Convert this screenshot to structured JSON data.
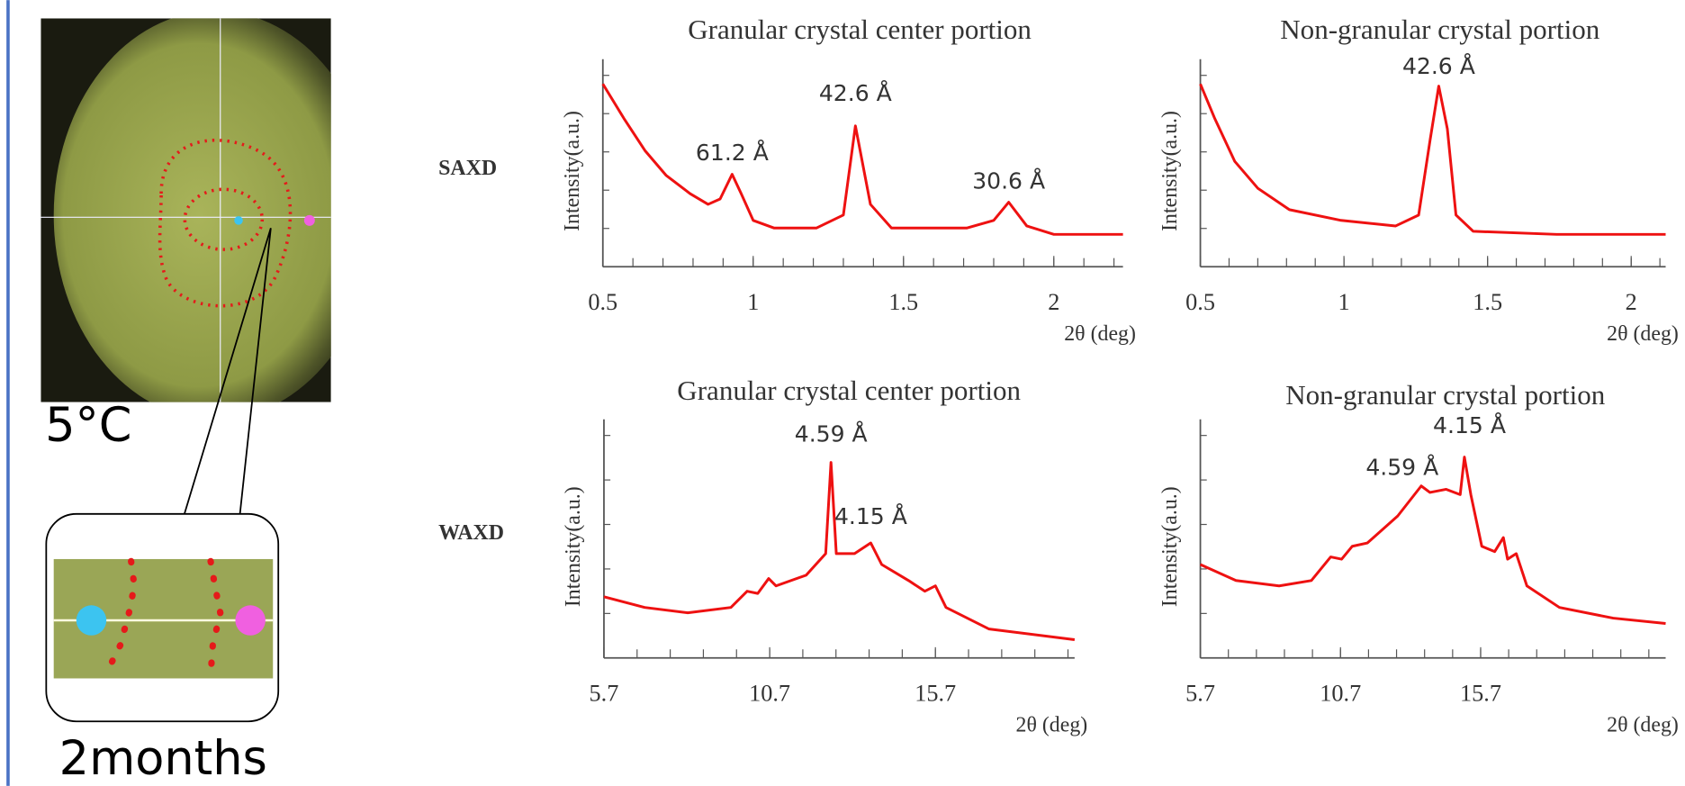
{
  "labels": {
    "temperature": "5°C",
    "duration": "2months",
    "row1": "SAXD",
    "row2": "WAXD"
  },
  "chart_data": [
    {
      "type": "line",
      "title": "Granular crystal center portion",
      "ylabel": "Intensity(a.u.)",
      "xlabel": "2θ (deg)",
      "color": "#ee1111",
      "x": [
        0.5,
        0.57,
        0.64,
        0.71,
        0.79,
        0.85,
        0.89,
        0.93,
        0.96,
        1.0,
        1.07,
        1.21,
        1.3,
        1.34,
        1.39,
        1.46,
        1.71,
        1.8,
        1.85,
        1.91,
        2.0,
        2.23
      ],
      "values": [
        95.5,
        77.5,
        60.7,
        47.8,
        38.2,
        32.6,
        35.4,
        48.3,
        38.2,
        24.2,
        20.2,
        20.2,
        27,
        73.6,
        32.6,
        20.2,
        20.2,
        24.2,
        33.7,
        21.3,
        16.9,
        16.9
      ],
      "xlim": [
        0.5,
        2.23
      ],
      "ylim": [
        0,
        100
      ],
      "xticks": [
        0.5,
        1,
        1.5,
        2
      ],
      "annotations": [
        {
          "text": "61.2 Å",
          "x": 0.93,
          "y": 59
        },
        {
          "text": "42.6 Å",
          "x": 1.34,
          "y": 90
        },
        {
          "text": "30.6 Å",
          "x": 1.85,
          "y": 44
        }
      ]
    },
    {
      "type": "line",
      "title": "Non-granular crystal portion",
      "ylabel": "Intensity(a.u.)",
      "xlabel": "2θ (deg)",
      "color": "#ee1111",
      "x": [
        0.5,
        0.55,
        0.62,
        0.7,
        0.81,
        0.99,
        1.18,
        1.26,
        1.3,
        1.33,
        1.36,
        1.39,
        1.45,
        1.74,
        2.12
      ],
      "values": [
        95.5,
        77.5,
        55,
        41,
        29.8,
        24.2,
        21.3,
        27,
        66.3,
        94.4,
        72,
        27,
        18.5,
        16.9,
        16.9
      ],
      "xlim": [
        0.5,
        2.12
      ],
      "ylim": [
        0,
        100
      ],
      "xticks": [
        0.5,
        1,
        1.5,
        2
      ],
      "annotations": [
        {
          "text": "42.6 Å",
          "x": 1.33,
          "y": 104
        }
      ]
    },
    {
      "type": "line",
      "title": "Granular crystal center portion",
      "ylabel": "Intensity(a.u.)",
      "xlabel": "2θ (deg)",
      "color": "#ee1111",
      "x": [
        5.7,
        6.93,
        8.23,
        9.53,
        10.02,
        10.34,
        10.67,
        10.89,
        11.8,
        12.39,
        12.55,
        12.71,
        13.26,
        13.75,
        14.08,
        14.89,
        15.38,
        15.7,
        16.02,
        17.32,
        19.9
      ],
      "values": [
        27.5,
        22.7,
        20.3,
        22.7,
        30,
        29,
        35.7,
        32.4,
        37.2,
        46.9,
        87.9,
        46.9,
        46.9,
        51.7,
        42,
        34.8,
        30,
        32.4,
        22.7,
        13,
        8.2
      ],
      "xlim": [
        5.7,
        19.9
      ],
      "ylim": [
        0,
        100
      ],
      "xticks": [
        5.7,
        10.7,
        15.7
      ],
      "annotations": [
        {
          "text": "4.59 Å",
          "x": 12.55,
          "y": 100
        },
        {
          "text": "4.15 Å",
          "x": 13.75,
          "y": 63
        }
      ]
    },
    {
      "type": "line",
      "title": "Non-granular crystal portion",
      "ylabel": "Intensity(a.u.)",
      "xlabel": "2θ (deg)",
      "color": "#ee1111",
      "x": [
        5.7,
        6.97,
        8.51,
        9.66,
        10.35,
        10.74,
        11.12,
        11.66,
        12.74,
        13.58,
        13.89,
        14.47,
        14.97,
        15.12,
        15.35,
        15.74,
        16.2,
        16.51,
        16.66,
        16.97,
        17.35,
        18.51,
        20.43,
        22.3
      ],
      "values": [
        42,
        34.8,
        32.4,
        34.8,
        45.4,
        44.4,
        50.2,
        51.7,
        63.8,
        77.3,
        74.4,
        75.8,
        73.4,
        90.3,
        73.4,
        50.2,
        47.8,
        54.1,
        44.4,
        46.9,
        32.4,
        22.7,
        17.9,
        15.5
      ],
      "xlim": [
        5.7,
        22.3
      ],
      "ylim": [
        0,
        100
      ],
      "xticks": [
        5.7,
        10.7,
        15.7
      ],
      "annotations": [
        {
          "text": "4.59 Å",
          "x": 12.9,
          "y": 85
        },
        {
          "text": "4.15 Å",
          "x": 15.3,
          "y": 104
        }
      ]
    }
  ]
}
